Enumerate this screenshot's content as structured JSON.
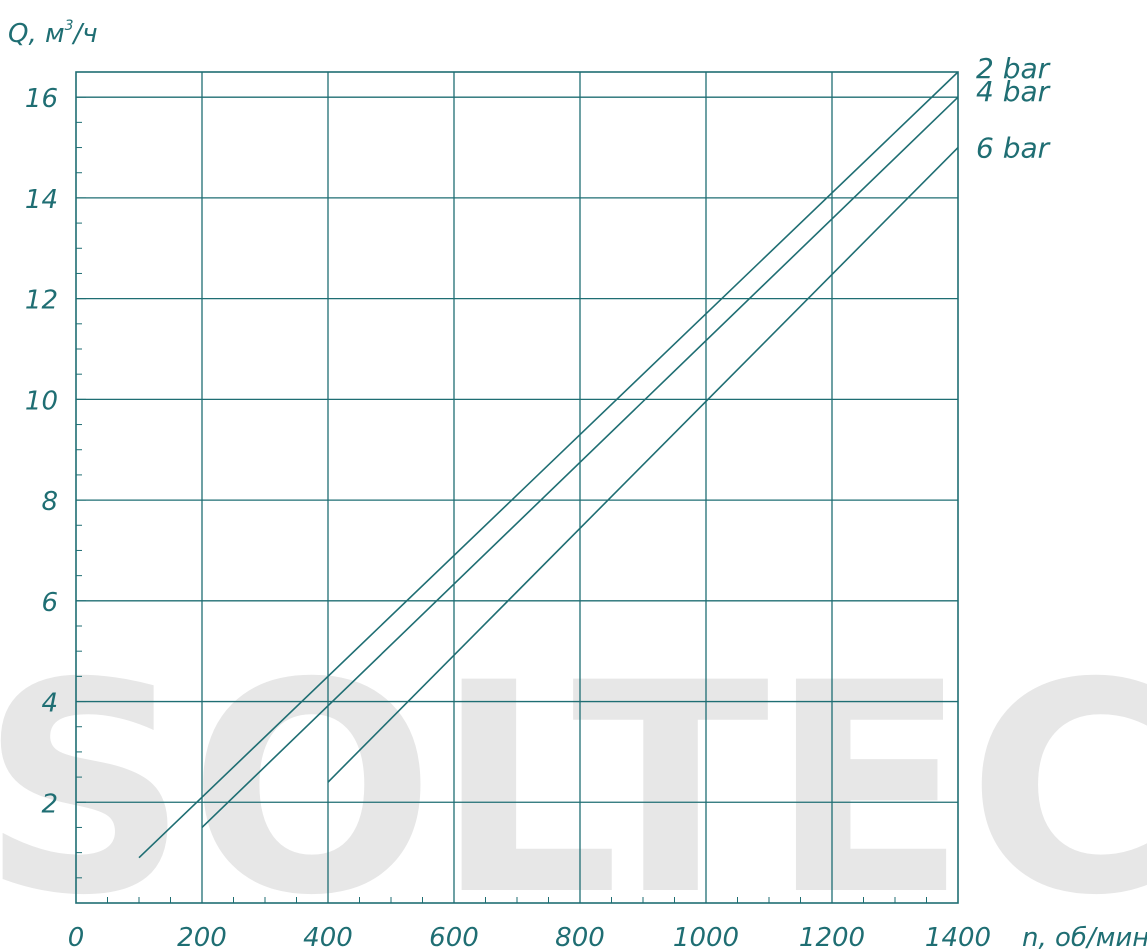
{
  "chart_data": {
    "type": "line",
    "title": "",
    "xlabel": "n, об/мин",
    "ylabel": "Q, м³/ч",
    "ylabel_main": "Q, м",
    "ylabel_sup": "3",
    "ylabel_tail": "/ч",
    "xlim": [
      0,
      1400
    ],
    "ylim": [
      0,
      16.5
    ],
    "x_ticks": [
      0,
      200,
      400,
      600,
      800,
      1000,
      1200,
      1400
    ],
    "x_tick_labels": [
      "0",
      "200",
      "400",
      "600",
      "800",
      "1000",
      "1200",
      "1400"
    ],
    "y_ticks": [
      2,
      4,
      6,
      8,
      10,
      12,
      14,
      16
    ],
    "y_tick_labels": [
      "2",
      "4",
      "6",
      "8",
      "10",
      "12",
      "14",
      "16"
    ],
    "grid": true,
    "legend": "right-end labels",
    "series": [
      {
        "name": "2 bar",
        "x": [
          100,
          1400
        ],
        "y": [
          0.9,
          16.5
        ]
      },
      {
        "name": "4 bar",
        "x": [
          200,
          1400
        ],
        "y": [
          1.5,
          16.0
        ]
      },
      {
        "name": "6 bar",
        "x": [
          400,
          1400
        ],
        "y": [
          2.4,
          15.0
        ]
      }
    ],
    "color": "#1f6e73"
  },
  "watermark": {
    "text": "SOLTEC",
    "color": "#e7e7e7"
  }
}
